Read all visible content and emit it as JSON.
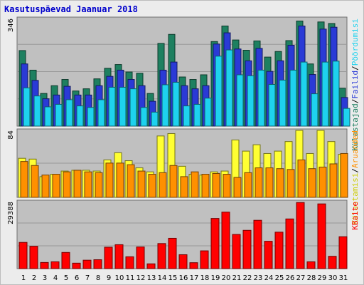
{
  "chart_data": {
    "type": "bar",
    "title": "Kasutuspäevad Jaanuar 2018",
    "categories": [
      "1",
      "2",
      "3",
      "4",
      "5",
      "6",
      "7",
      "8",
      "9",
      "10",
      "11",
      "12",
      "13",
      "14",
      "15",
      "16",
      "17",
      "18",
      "19",
      "20",
      "21",
      "22",
      "23",
      "24",
      "25",
      "26",
      "27",
      "28",
      "29",
      "30",
      "31"
    ],
    "weekend_days": [
      "6",
      "7",
      "13",
      "14",
      "20",
      "21",
      "27",
      "28"
    ],
    "panels": [
      {
        "max_label": "346",
        "ylim": [
          0,
          346
        ],
        "series": [
          {
            "name": "Külastajad",
            "color": "#1e8060",
            "values": [
              243,
              180,
              105,
              130,
              150,
              113,
              120,
              152,
              186,
              198,
              174,
              170,
              105,
              266,
              295,
              158,
              150,
              165,
              272,
              322,
              277,
              244,
              274,
              222,
              240,
              275,
              338,
              200,
              335,
              330,
              122
            ]
          },
          {
            "name": "Failid",
            "color": "#2a3ad6",
            "values": [
              200,
              147,
              88,
              100,
              128,
              100,
              100,
              130,
              160,
              180,
              150,
              130,
              80,
              180,
              206,
              130,
              120,
              130,
              264,
              300,
              248,
              210,
              250,
              176,
              210,
              260,
              322,
              166,
              312,
              318,
              92
            ]
          },
          {
            "name": "Pöördumisi",
            "color": "#1ed2ee",
            "values": [
              123,
              97,
              62,
              70,
              85,
              65,
              60,
              85,
              125,
              125,
              120,
              60,
              45,
              133,
              141,
              65,
              70,
              90,
              225,
              245,
              165,
              162,
              180,
              134,
              148,
              180,
              206,
              104,
              206,
              209,
              57
            ]
          }
        ]
      },
      {
        "max_label": "84",
        "ylim": [
          0,
          84
        ],
        "series": [
          {
            "name": "Külastamisi",
            "color": "#ffff33",
            "values": [
              49,
              48,
              26,
              29,
              33,
              34,
              34,
              33,
              47,
              56,
              46,
              37,
              32,
              77,
              80,
              39,
              29,
              28,
              32,
              33,
              72,
              58,
              66,
              55,
              58,
              70,
              84,
              55,
              84,
              70,
              54
            ]
          },
          {
            "name": "Aruanded",
            "color": "#ff9000",
            "values": [
              45,
              40,
              28,
              29,
              32,
              34,
              32,
              31,
              43,
              43,
              41,
              33,
              29,
              31,
              40,
              26,
              32,
              29,
              30,
              29,
              25,
              31,
              37,
              37,
              36,
              35,
              47,
              36,
              38,
              42,
              55
            ]
          }
        ]
      },
      {
        "max_label": "29388",
        "ylim": [
          0,
          29388
        ],
        "series": [
          {
            "name": "KBaite",
            "color": "#ff0000",
            "values": [
              11500,
              9800,
              2700,
              3000,
              7100,
              2400,
              3700,
              3900,
              9400,
              10500,
              5200,
              9500,
              2100,
              11000,
              13300,
              6100,
              2600,
              7800,
              22000,
              24800,
              15000,
              16800,
              21200,
              12000,
              16000,
              21800,
              29000,
              3000,
              28400,
              5400,
              14000
            ]
          }
        ]
      }
    ],
    "right_labels": {
      "panel1": [
        {
          "text": "Külastajad",
          "color": "#1e8060"
        },
        {
          "text": "/",
          "color": "#000000"
        },
        {
          "text": "Failid",
          "color": "#2a3ad6"
        },
        {
          "text": "/",
          "color": "#000000"
        },
        {
          "text": "Pöördumisi",
          "color": "#1ed2ee"
        }
      ],
      "panel2": [
        {
          "text": "Külastamisi",
          "color": "#cccc00"
        },
        {
          "text": "/",
          "color": "#000000"
        },
        {
          "text": "Aruanded",
          "color": "#ff9000"
        }
      ],
      "panel3": [
        {
          "text": "KBaite",
          "color": "#ff0000"
        }
      ]
    },
    "colors": {
      "plot_bg": "#c0c0c0",
      "grid": "#999999",
      "weekday_tick": "#000000",
      "weekend_tick": "#00805a"
    }
  }
}
